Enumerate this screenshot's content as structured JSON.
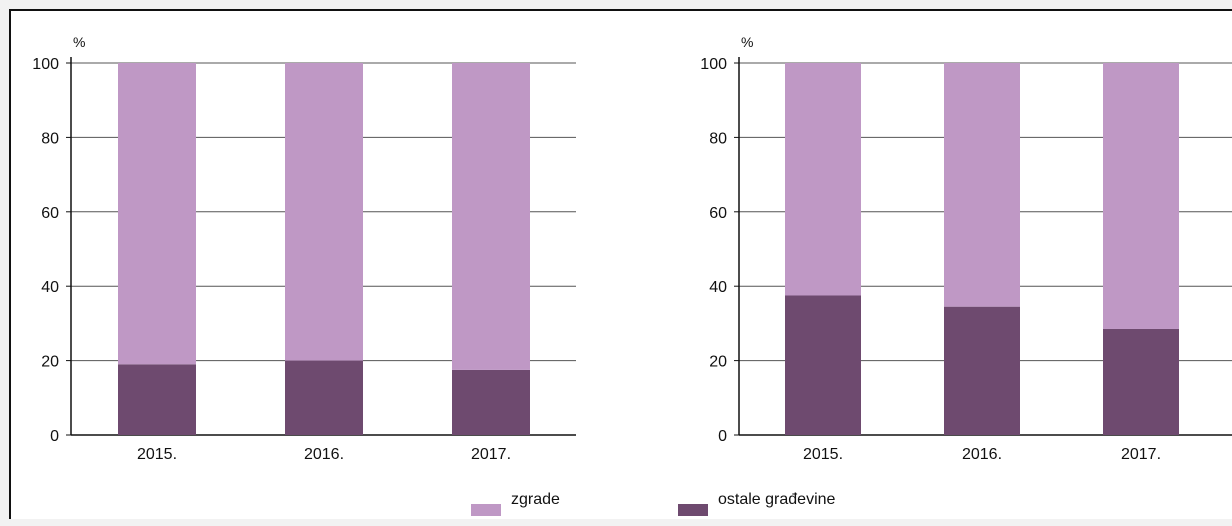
{
  "colors": {
    "zgrade": "#bf98c5",
    "ostale": "#6e4a6f",
    "grid": "#555555",
    "axis": "#111111"
  },
  "legend": {
    "zgrade_label": "zgrade",
    "ostale_label": "ostale građevine"
  },
  "chart_data": [
    {
      "type": "bar",
      "stacked": true,
      "categories": [
        "2015.",
        "2016.",
        "2017."
      ],
      "ylabel": "%",
      "ylim": [
        0,
        100
      ],
      "yticks": [
        0,
        20,
        40,
        60,
        80,
        100
      ],
      "grid": true,
      "series": [
        {
          "name": "ostale građevine",
          "values": [
            19,
            20,
            17.5
          ]
        },
        {
          "name": "zgrade",
          "values": [
            81,
            80,
            82.5
          ]
        }
      ]
    },
    {
      "type": "bar",
      "stacked": true,
      "categories": [
        "2015.",
        "2016.",
        "2017."
      ],
      "ylabel": "%",
      "ylim": [
        0,
        100
      ],
      "yticks": [
        0,
        20,
        40,
        60,
        80,
        100
      ],
      "grid": true,
      "series": [
        {
          "name": "ostale građevine",
          "values": [
            37.5,
            34.5,
            28.5
          ]
        },
        {
          "name": "zgrade",
          "values": [
            62.5,
            65.5,
            71.5
          ]
        }
      ]
    }
  ]
}
